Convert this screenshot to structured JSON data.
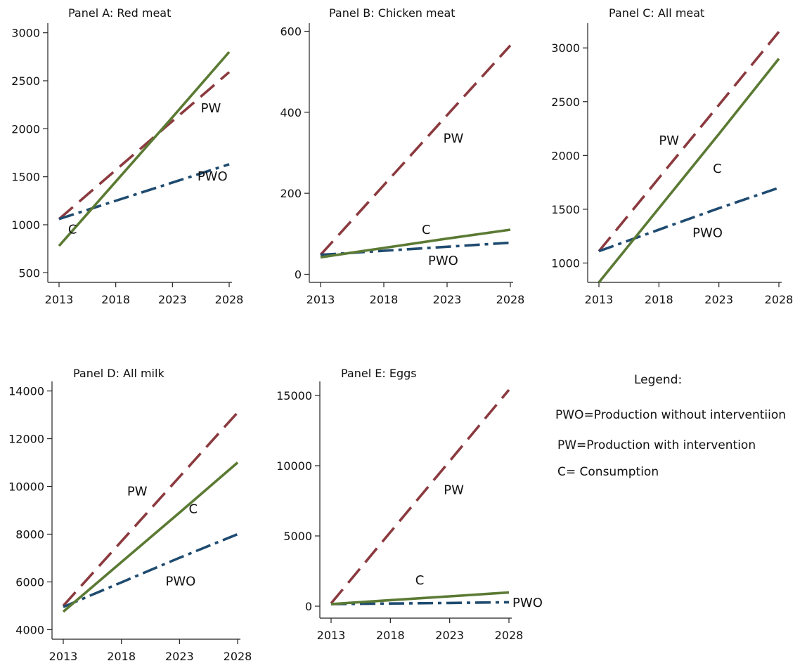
{
  "colors": {
    "PW": "#8b3a3f",
    "PWO": "#1f4b70",
    "C": "#5b7a34",
    "axis": "#222222"
  },
  "legend": {
    "title": "Legend:",
    "items": [
      "PWO=Production without interventiion",
      "PW=Production with intervention",
      "C= Consumption"
    ]
  },
  "chart_data": [
    {
      "type": "line",
      "title": "Panel A: Red meat",
      "x": [
        2013,
        2018,
        2023,
        2028
      ],
      "xticks": [
        "2013",
        "2018",
        "2023",
        "2028"
      ],
      "yticks": [
        500,
        1000,
        1500,
        2000,
        2500,
        3000
      ],
      "ylim": [
        400,
        3100
      ],
      "series": [
        {
          "name": "PW",
          "style": "dashed",
          "values": [
            1060,
            1570,
            2080,
            2590
          ],
          "label_at": [
            2025.5,
            2170
          ]
        },
        {
          "name": "PWO",
          "style": "dashdot",
          "values": [
            1060,
            1250,
            1440,
            1630
          ],
          "label_at": [
            2025.2,
            1460
          ]
        },
        {
          "name": "C",
          "style": "solid",
          "values": [
            780,
            1450,
            2120,
            2800
          ],
          "label_at": [
            2013.8,
            910
          ]
        }
      ]
    },
    {
      "type": "line",
      "title": "Panel B: Chicken meat",
      "x": [
        2013,
        2018,
        2023,
        2028
      ],
      "xticks": [
        "2013",
        "2018",
        "2023",
        "2028"
      ],
      "yticks": [
        0,
        200,
        400,
        600
      ],
      "ylim": [
        -20,
        620
      ],
      "series": [
        {
          "name": "PW",
          "style": "dashed",
          "values": [
            48,
            220,
            393,
            565
          ],
          "label_at": [
            2022.7,
            325
          ]
        },
        {
          "name": "PWO",
          "style": "dashdot",
          "values": [
            48,
            58,
            68,
            78
          ],
          "label_at": [
            2021.5,
            23
          ]
        },
        {
          "name": "C",
          "style": "solid",
          "values": [
            42,
            65,
            88,
            110
          ],
          "label_at": [
            2021,
            100
          ]
        }
      ]
    },
    {
      "type": "line",
      "title": "Panel C: All meat",
      "x": [
        2013,
        2018,
        2023,
        2028
      ],
      "xticks": [
        "2013",
        "2018",
        "2023",
        "2028"
      ],
      "yticks": [
        1000,
        1500,
        2000,
        2500,
        3000
      ],
      "ylim": [
        820,
        3230
      ],
      "series": [
        {
          "name": "PW",
          "style": "dashed",
          "values": [
            1110,
            1790,
            2470,
            3150
          ],
          "label_at": [
            2018,
            2100
          ]
        },
        {
          "name": "PWO",
          "style": "dashdot",
          "values": [
            1110,
            1310,
            1510,
            1700
          ],
          "label_at": [
            2020.8,
            1240
          ]
        },
        {
          "name": "C",
          "style": "solid",
          "values": [
            820,
            1510,
            2200,
            2900
          ],
          "label_at": [
            2022.5,
            1840
          ]
        }
      ]
    },
    {
      "type": "line",
      "title": "Panel D: All milk",
      "x": [
        2013,
        2018,
        2023,
        2028
      ],
      "xticks": [
        "2013",
        "2018",
        "2023",
        "2028"
      ],
      "yticks": [
        4000,
        6000,
        8000,
        10000,
        12000,
        14000
      ],
      "ylim": [
        3600,
        14400
      ],
      "series": [
        {
          "name": "PW",
          "style": "dashed",
          "values": [
            5000,
            7700,
            10400,
            13100
          ],
          "label_at": [
            2018.5,
            9620
          ]
        },
        {
          "name": "PWO",
          "style": "dashdot",
          "values": [
            4950,
            5980,
            7010,
            8000
          ],
          "label_at": [
            2021.8,
            5850
          ]
        },
        {
          "name": "C",
          "style": "solid",
          "values": [
            4750,
            6830,
            8900,
            11000
          ],
          "label_at": [
            2023.8,
            8880
          ]
        }
      ]
    },
    {
      "type": "line",
      "title": "Panel E: Eggs",
      "x": [
        2013,
        2018,
        2023,
        2028
      ],
      "xticks": [
        "2013",
        "2018",
        "2023",
        "2028"
      ],
      "yticks": [
        0,
        5000,
        10000,
        15000
      ],
      "ylim": [
        -850,
        16000
      ],
      "series": [
        {
          "name": "PW",
          "style": "dashed",
          "values": [
            200,
            5270,
            10330,
            15400
          ],
          "label_at": [
            2022.5,
            7980
          ]
        },
        {
          "name": "PWO",
          "style": "dashdot",
          "values": [
            150,
            190,
            230,
            280
          ],
          "label_at": [
            2028.3,
            -40
          ]
        },
        {
          "name": "C",
          "style": "solid",
          "values": [
            150,
            430,
            700,
            980
          ],
          "label_at": [
            2020.1,
            1560
          ]
        }
      ]
    }
  ]
}
